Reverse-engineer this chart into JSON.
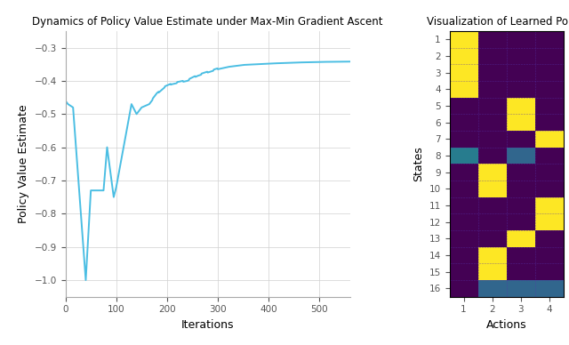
{
  "line_title": "Dynamics of Policy Value Estimate under Max-Min Gradient Ascent",
  "heatmap_title": "Visualization of Learned Policy",
  "line_xlabel": "Iterations",
  "line_ylabel": "Policy Value Estimate",
  "heatmap_xlabel": "Actions",
  "heatmap_ylabel": "States",
  "line_color": "#4bbee3",
  "line_width": 1.4,
  "ylim": [
    -1.05,
    -0.25
  ],
  "yticks": [
    -1.0,
    -0.9,
    -0.8,
    -0.7,
    -0.6,
    -0.5,
    -0.4,
    -0.3
  ],
  "xlim": [
    0,
    560
  ],
  "xticks": [
    0,
    100,
    200,
    300,
    400,
    500
  ],
  "n_states": 16,
  "n_actions": 4,
  "policy_matrix": [
    [
      1.0,
      0.0,
      0.0,
      0.0
    ],
    [
      1.0,
      0.0,
      0.0,
      0.0
    ],
    [
      1.0,
      0.0,
      0.0,
      0.0
    ],
    [
      1.0,
      0.0,
      0.0,
      0.0
    ],
    [
      0.0,
      0.0,
      1.0,
      0.0
    ],
    [
      0.0,
      0.0,
      1.0,
      0.0
    ],
    [
      0.0,
      0.0,
      0.0,
      1.0
    ],
    [
      0.42,
      0.0,
      0.33,
      0.0
    ],
    [
      0.0,
      1.0,
      0.0,
      0.0
    ],
    [
      0.0,
      1.0,
      0.0,
      0.0
    ],
    [
      0.0,
      0.0,
      0.0,
      1.0
    ],
    [
      0.0,
      0.0,
      0.0,
      1.0
    ],
    [
      0.0,
      0.0,
      1.0,
      0.0
    ],
    [
      0.0,
      1.0,
      0.0,
      0.0
    ],
    [
      0.0,
      1.0,
      0.0,
      0.0
    ],
    [
      0.0,
      0.33,
      0.33,
      0.33
    ]
  ],
  "cmap": "viridis",
  "background_color": "#ffffff",
  "grid_color": "#d0d0d0",
  "title_fontsize": 8.5,
  "label_fontsize": 9,
  "tick_fontsize": 7.5
}
